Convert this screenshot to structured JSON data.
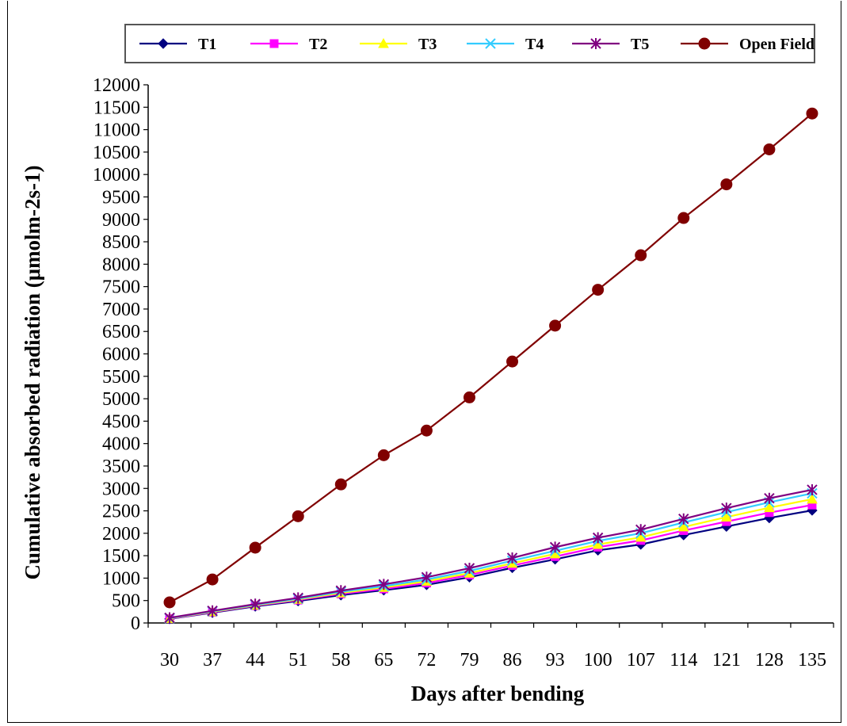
{
  "chart_data": {
    "type": "line",
    "title": "",
    "xlabel": "Days after bending",
    "ylabel": "Cumulative absorbed radiation (μmolm-2s-1)",
    "categories": [
      "30",
      "37",
      "44",
      "51",
      "58",
      "65",
      "72",
      "79",
      "86",
      "93",
      "100",
      "107",
      "114",
      "121",
      "128",
      "135"
    ],
    "ylim": [
      0,
      12000
    ],
    "ytick_step": 500,
    "grid": false,
    "legend_position": "top",
    "series": [
      {
        "name": "T1",
        "color": "#000080",
        "marker": "diamond",
        "values": [
          90,
          230,
          370,
          490,
          620,
          730,
          850,
          1020,
          1230,
          1420,
          1620,
          1750,
          1960,
          2150,
          2340,
          2510
        ]
      },
      {
        "name": "T2",
        "color": "#FF00FF",
        "marker": "square",
        "values": [
          95,
          240,
          385,
          510,
          650,
          760,
          890,
          1070,
          1280,
          1480,
          1690,
          1840,
          2060,
          2260,
          2460,
          2630
        ]
      },
      {
        "name": "T3",
        "color": "#FFFF00",
        "marker": "triangle",
        "values": [
          100,
          250,
          395,
          525,
          670,
          790,
          930,
          1110,
          1330,
          1540,
          1750,
          1910,
          2140,
          2360,
          2570,
          2760
        ]
      },
      {
        "name": "T4",
        "color": "#33CCFF",
        "marker": "x",
        "values": [
          105,
          260,
          405,
          540,
          695,
          820,
          970,
          1160,
          1390,
          1610,
          1830,
          2000,
          2240,
          2470,
          2690,
          2890
        ]
      },
      {
        "name": "T5",
        "color": "#800080",
        "marker": "star",
        "values": [
          115,
          270,
          420,
          560,
          720,
          860,
          1020,
          1220,
          1450,
          1690,
          1900,
          2080,
          2320,
          2560,
          2780,
          2970
        ]
      },
      {
        "name": "Open Field",
        "color": "#800000",
        "marker": "circle",
        "values": [
          460,
          970,
          1680,
          2380,
          3090,
          3740,
          4290,
          5030,
          5830,
          6630,
          7430,
          8200,
          9030,
          9780,
          10560,
          11360
        ]
      }
    ]
  }
}
